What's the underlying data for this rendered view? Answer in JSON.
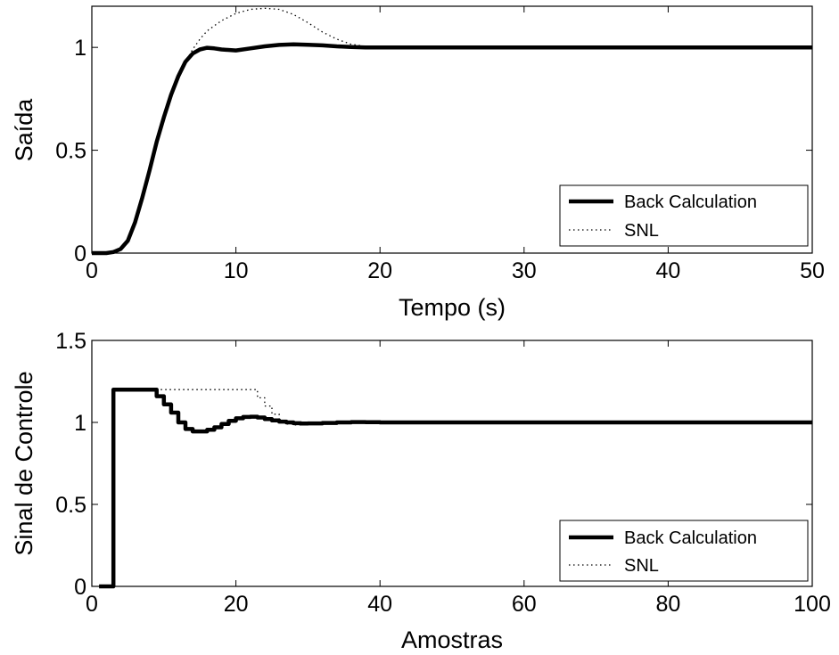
{
  "chart_data": [
    {
      "type": "line",
      "xlabel": "Tempo (s)",
      "ylabel": "Saída",
      "xlim": [
        0,
        50
      ],
      "ylim": [
        0,
        1.2
      ],
      "xticks": [
        "0",
        "10",
        "20",
        "30",
        "40",
        "50"
      ],
      "yticks": [
        "0",
        "0.5",
        "1"
      ],
      "grid": false,
      "legend_position": "lower-right",
      "series": [
        {
          "name": "Back Calculation",
          "style": "solid-thick",
          "x": [
            0,
            1,
            1.5,
            2,
            2.5,
            3,
            3.5,
            4,
            4.5,
            5,
            5.5,
            6,
            6.5,
            7,
            7.5,
            8,
            8.5,
            9,
            10,
            11,
            12,
            13,
            14,
            15,
            16,
            17,
            18,
            19,
            20,
            25,
            30,
            40,
            50
          ],
          "y": [
            0,
            0,
            0.005,
            0.02,
            0.06,
            0.15,
            0.27,
            0.4,
            0.54,
            0.66,
            0.77,
            0.86,
            0.93,
            0.97,
            0.99,
            0.998,
            0.995,
            0.99,
            0.985,
            0.995,
            1.005,
            1.012,
            1.015,
            1.013,
            1.01,
            1.005,
            1.002,
            1.0,
            1.0,
            1.0,
            1.0,
            1.0,
            1.0
          ]
        },
        {
          "name": "SNL",
          "style": "dotted",
          "x": [
            0,
            1,
            1.5,
            2,
            2.5,
            3,
            3.5,
            4,
            4.5,
            5,
            5.5,
            6,
            6.5,
            7,
            7.5,
            8,
            9,
            10,
            11,
            12,
            13,
            14,
            15,
            16,
            17,
            18,
            19,
            20,
            25,
            30,
            40,
            50
          ],
          "y": [
            0,
            0,
            0.005,
            0.02,
            0.06,
            0.15,
            0.27,
            0.4,
            0.54,
            0.66,
            0.77,
            0.86,
            0.93,
            0.99,
            1.04,
            1.08,
            1.13,
            1.165,
            1.185,
            1.19,
            1.185,
            1.16,
            1.12,
            1.075,
            1.04,
            1.015,
            1.005,
            1.0,
            1.0,
            1.0,
            1.0,
            1.0
          ]
        }
      ]
    },
    {
      "type": "line",
      "xlabel": "Amostras",
      "ylabel": "Sinal de Controle",
      "xlim": [
        0,
        100
      ],
      "ylim": [
        0,
        1.5
      ],
      "xticks": [
        "0",
        "20",
        "40",
        "60",
        "80",
        "100"
      ],
      "yticks": [
        "0",
        "0.5",
        "1",
        "1.5"
      ],
      "grid": false,
      "legend_position": "lower-right",
      "series": [
        {
          "name": "Back Calculation",
          "style": "solid-thick-stairs",
          "x": [
            1,
            2,
            3,
            4,
            5,
            6,
            7,
            8,
            9,
            10,
            11,
            12,
            13,
            14,
            15,
            16,
            17,
            18,
            19,
            20,
            21,
            22,
            23,
            24,
            25,
            26,
            27,
            28,
            29,
            30,
            32,
            34,
            36,
            38,
            40,
            50,
            60,
            80,
            100
          ],
          "y": [
            0,
            0,
            1.2,
            1.2,
            1.2,
            1.2,
            1.2,
            1.2,
            1.16,
            1.11,
            1.06,
            1.0,
            0.96,
            0.945,
            0.945,
            0.955,
            0.97,
            0.99,
            1.01,
            1.025,
            1.033,
            1.035,
            1.03,
            1.02,
            1.012,
            1.005,
            1.0,
            0.995,
            0.993,
            0.994,
            0.997,
            1.0,
            1.002,
            1.001,
            1.0,
            1.0,
            1.0,
            1.0,
            1.0
          ]
        },
        {
          "name": "SNL",
          "style": "dotted-stairs",
          "x": [
            1,
            2,
            3,
            4,
            8,
            12,
            16,
            20,
            22,
            23,
            24,
            25,
            26,
            27,
            28,
            29,
            30,
            32,
            34,
            36,
            40,
            50,
            60,
            80,
            100
          ],
          "y": [
            0,
            0,
            1.2,
            1.2,
            1.2,
            1.2,
            1.2,
            1.2,
            1.2,
            1.15,
            1.1,
            1.05,
            1.01,
            0.99,
            0.985,
            0.99,
            0.995,
            1.0,
            1.0,
            1.0,
            1.0,
            1.0,
            1.0,
            1.0,
            1.0
          ]
        }
      ]
    }
  ]
}
